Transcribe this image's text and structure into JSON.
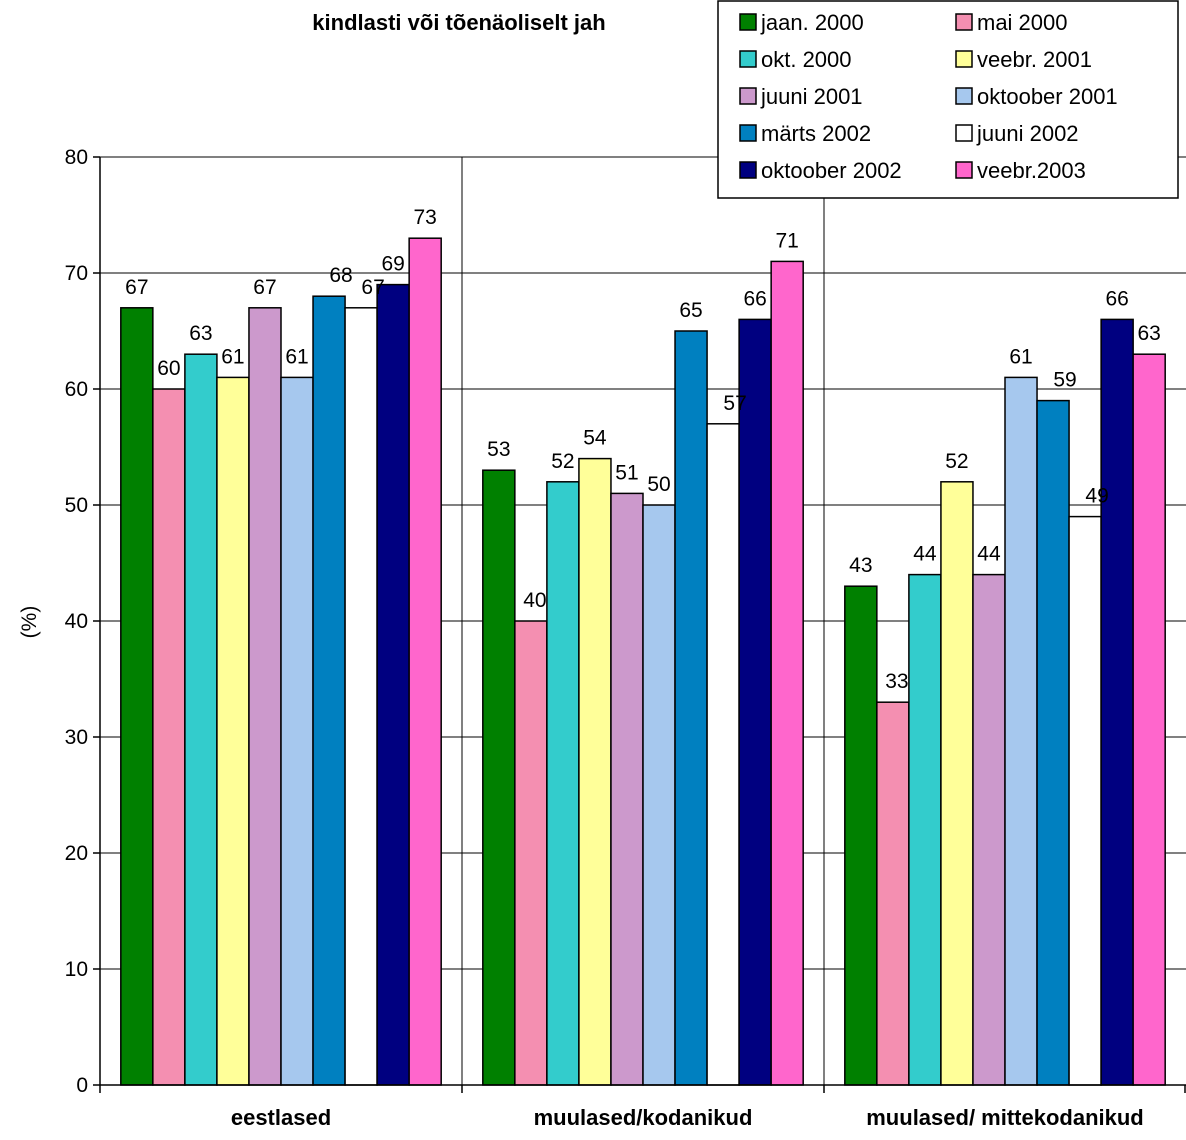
{
  "chart_data": {
    "type": "bar",
    "title": "kindlasti või tõenäoliselt jah",
    "ylabel": "(%)",
    "xlabel": "",
    "ylim": [
      0,
      80
    ],
    "yticks": [
      0,
      10,
      20,
      30,
      40,
      50,
      60,
      70,
      80
    ],
    "grid": true,
    "legend_position": "top-right",
    "categories": [
      "eestlased",
      "muulased/kodanikud",
      "muulased/ mittekodanikud"
    ],
    "series": [
      {
        "name": "jaan. 2000",
        "color": "#008000",
        "values": [
          67,
          53,
          43
        ]
      },
      {
        "name": "mai 2000",
        "color": "#f48fb1",
        "values": [
          60,
          40,
          33
        ]
      },
      {
        "name": "okt. 2000",
        "color": "#33cccc",
        "values": [
          63,
          52,
          44
        ]
      },
      {
        "name": "veebr. 2001",
        "color": "#ffff99",
        "values": [
          61,
          54,
          52
        ]
      },
      {
        "name": "juuni 2001",
        "color": "#cc99cc",
        "values": [
          67,
          51,
          44
        ]
      },
      {
        "name": "oktoober 2001",
        "color": "#a6c8ee",
        "values": [
          61,
          50,
          61
        ]
      },
      {
        "name": "märts 2002",
        "color": "#0080c0",
        "values": [
          68,
          65,
          59
        ]
      },
      {
        "name": "juuni 2002",
        "color": "#ffffff",
        "values": [
          67,
          57,
          49
        ]
      },
      {
        "name": "oktoober 2002",
        "color": "#000080",
        "values": [
          69,
          66,
          66
        ]
      },
      {
        "name": "veebr.2003",
        "color": "#ff66cc",
        "values": [
          73,
          71,
          63
        ]
      }
    ]
  }
}
